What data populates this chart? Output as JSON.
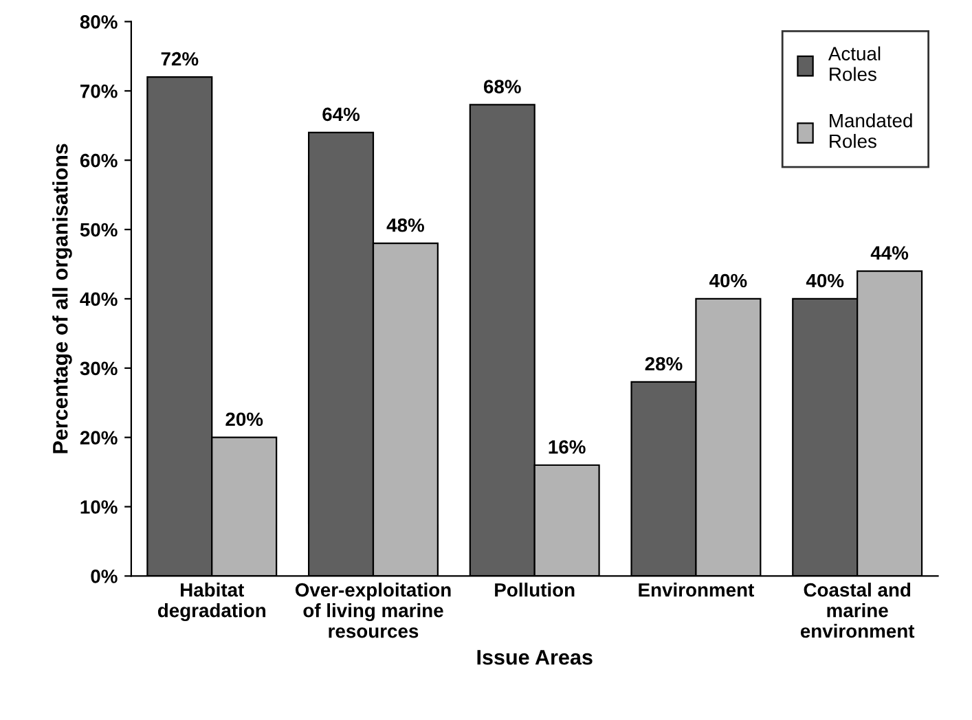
{
  "chart_data": {
    "type": "bar",
    "xlabel": "Issue Areas",
    "ylabel": "Percentage of all organisations",
    "categories": [
      "Habitat\ndegradation",
      "Over-exploitation\nof living marine\nresources",
      "Pollution",
      "Environment",
      "Coastal and\nmarine\nenvironment"
    ],
    "series": [
      {
        "name": "Actual\nRoles",
        "color": "#606060",
        "values": [
          72,
          64,
          68,
          28,
          40
        ],
        "value_labels": [
          "72%",
          "64%",
          "68%",
          "28%",
          "40%"
        ]
      },
      {
        "name": "Mandated\nRoles",
        "color": "#b3b3b3",
        "values": [
          20,
          48,
          16,
          40,
          44
        ],
        "value_labels": [
          "20%",
          "48%",
          "16%",
          "40%",
          "44%"
        ]
      }
    ],
    "ylim": [
      0,
      80
    ],
    "yticks": [
      {
        "value": 0,
        "label": "0%"
      },
      {
        "value": 10,
        "label": "10%"
      },
      {
        "value": 20,
        "label": "20%"
      },
      {
        "value": 30,
        "label": "30%"
      },
      {
        "value": 40,
        "label": "40%"
      },
      {
        "value": 50,
        "label": "50%"
      },
      {
        "value": 60,
        "label": "60%"
      },
      {
        "value": 70,
        "label": "70%"
      },
      {
        "value": 80,
        "label": "80%"
      }
    ],
    "grid": false,
    "legend": "top right"
  }
}
